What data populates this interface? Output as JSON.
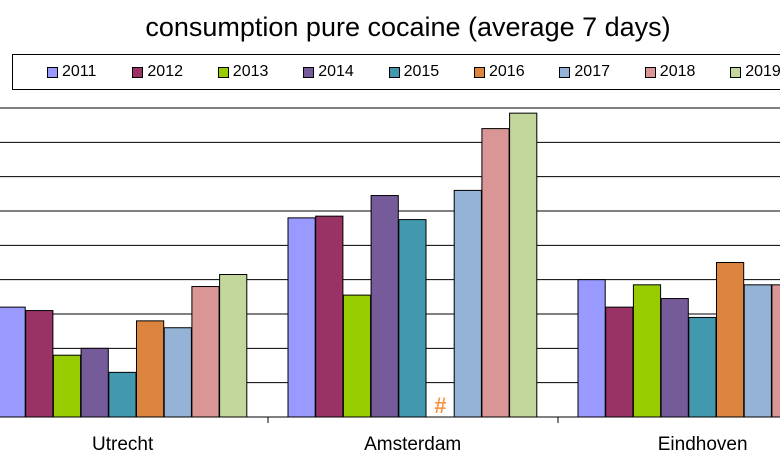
{
  "chart_data": {
    "type": "bar",
    "title": "consumption pure cocaine (average 7 days)",
    "categories": [
      "Utrecht",
      "Amsterdam",
      "Eindhoven"
    ],
    "series": [
      {
        "name": "2011",
        "color": "#9999FF",
        "values": [
          3.2,
          5.8,
          4.0
        ]
      },
      {
        "name": "2012",
        "color": "#993366",
        "values": [
          3.1,
          5.85,
          3.2
        ]
      },
      {
        "name": "2013",
        "color": "#99CC00",
        "values": [
          1.8,
          3.55,
          3.85
        ]
      },
      {
        "name": "2014",
        "color": "#765B9B",
        "values": [
          2.0,
          6.45,
          3.45
        ]
      },
      {
        "name": "2015",
        "color": "#4198AF",
        "values": [
          1.3,
          5.75,
          2.9
        ]
      },
      {
        "name": "2016",
        "color": "#DB843D",
        "values": [
          2.8,
          null,
          4.5
        ]
      },
      {
        "name": "2017",
        "color": "#95B3D7",
        "values": [
          2.6,
          6.6,
          3.85
        ]
      },
      {
        "name": "2018",
        "color": "#D99694",
        "values": [
          3.8,
          8.4,
          3.85
        ]
      },
      {
        "name": "2019",
        "color": "#C3D69B",
        "values": [
          4.15,
          8.85,
          null
        ]
      }
    ],
    "missing_marker": "#",
    "missing_marker_color": "#F79646",
    "ylim": [
      0,
      9
    ],
    "grid": true,
    "legend_position": "top"
  }
}
